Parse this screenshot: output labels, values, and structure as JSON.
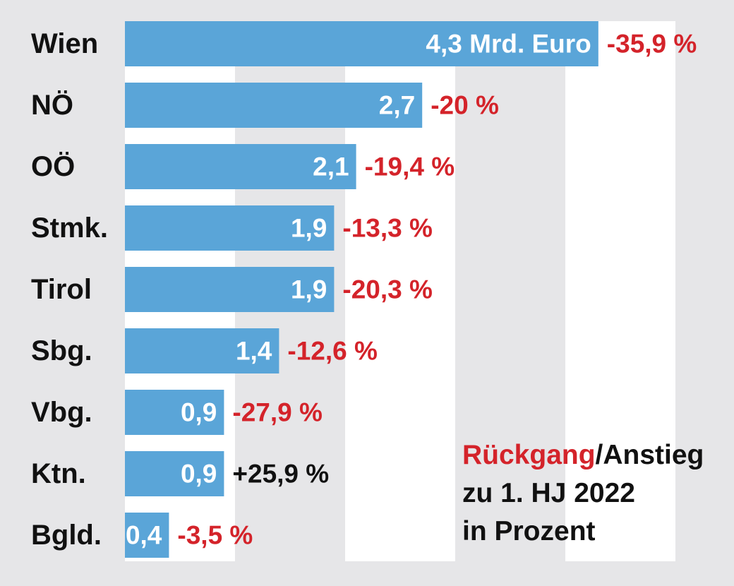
{
  "chart_data": {
    "type": "bar",
    "orientation": "horizontal",
    "categories": [
      "Wien",
      "NÖ",
      "OÖ",
      "Stmk.",
      "Tirol",
      "Sbg.",
      "Vbg.",
      "Ktn.",
      "Bgld."
    ],
    "values": [
      4.3,
      2.7,
      2.1,
      1.9,
      1.9,
      1.4,
      0.9,
      0.9,
      0.4
    ],
    "value_labels": [
      "4,3 Mrd. Euro",
      "2,7",
      "2,1",
      "1,9",
      "1,9",
      "1,4",
      "0,9",
      "0,9",
      "0,4"
    ],
    "changes": [
      -35.9,
      -20.0,
      -19.4,
      -13.3,
      -20.3,
      -12.6,
      -27.9,
      25.9,
      -3.5
    ],
    "change_labels": [
      "-35,9 %",
      "-20 %",
      "-19,4 %",
      "-13,3 %",
      "-20,3 %",
      "-12,6 %",
      "-27,9 %",
      "+25,9 %",
      "-3,5 %"
    ],
    "xlim": [
      0,
      5
    ],
    "grid": true,
    "legend_placement": "bottom-right"
  },
  "legend": {
    "decrease": "Rückgang",
    "separator_increase": "/Anstieg",
    "line2": "zu 1. HJ 2022",
    "line3": "in Prozent"
  },
  "colors": {
    "bar": "#5aa5d8",
    "negative": "#d4232a",
    "positive": "#111111",
    "value_text": "#ffffff",
    "grid_band": "#ffffff",
    "background": "#e6e6e8"
  }
}
